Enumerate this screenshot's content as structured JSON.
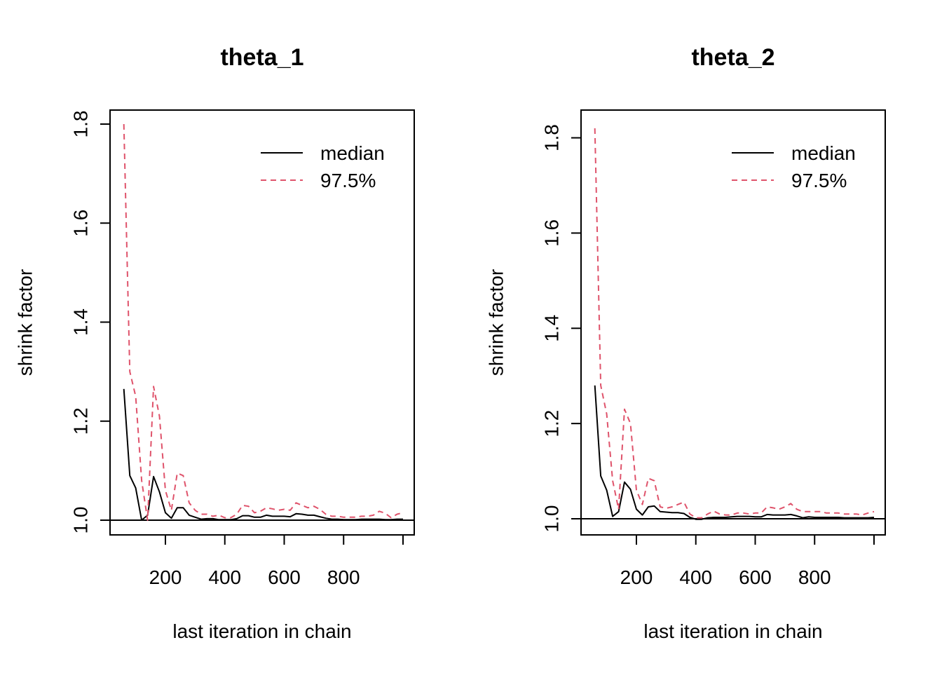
{
  "chart_data": [
    {
      "type": "line",
      "title": "theta_1",
      "xlabel": "last iteration in chain",
      "ylabel": "shrink factor",
      "xlim": [
        50,
        1000
      ],
      "ylim": [
        1.0,
        1.8
      ],
      "xticks": [
        200,
        400,
        600,
        800
      ],
      "xtick_labels": [
        "200",
        "400",
        "600",
        "800"
      ],
      "yticks": [
        1.0,
        1.2,
        1.4,
        1.6,
        1.8
      ],
      "ytick_labels": [
        "1.0",
        "1.2",
        "1.4",
        "1.6",
        "1.8"
      ],
      "reference_line": 1.0,
      "legend": {
        "position": "top-right"
      },
      "x": [
        60,
        80,
        100,
        120,
        140,
        160,
        180,
        200,
        220,
        240,
        260,
        280,
        300,
        320,
        340,
        360,
        380,
        400,
        420,
        440,
        460,
        480,
        500,
        520,
        540,
        560,
        580,
        600,
        620,
        640,
        660,
        680,
        700,
        720,
        740,
        760,
        780,
        800,
        820,
        840,
        860,
        880,
        900,
        920,
        940,
        960,
        980,
        1000
      ],
      "series": [
        {
          "name": "median",
          "color": "#000000",
          "dash": "solid",
          "values": [
            1.265,
            1.09,
            1.065,
            1.0,
            1.01,
            1.088,
            1.057,
            1.015,
            1.004,
            1.025,
            1.025,
            1.01,
            1.006,
            1.002,
            1.003,
            1.003,
            1.001,
            1.001,
            1.001,
            1.003,
            1.009,
            1.009,
            1.006,
            1.006,
            1.01,
            1.008,
            1.008,
            1.008,
            1.007,
            1.013,
            1.012,
            1.01,
            1.01,
            1.007,
            1.004,
            1.002,
            1.002,
            1.001,
            1.001,
            1.001,
            1.002,
            1.002,
            1.002,
            1.002,
            1.001,
            1.001,
            1.002,
            1.002
          ]
        },
        {
          "name": "97.5%",
          "color": "#DF536B",
          "dash": "dashed",
          "values": [
            1.8,
            1.3,
            1.25,
            1.08,
            1.0,
            1.27,
            1.21,
            1.06,
            1.02,
            1.095,
            1.09,
            1.035,
            1.02,
            1.012,
            1.012,
            1.008,
            1.01,
            1.005,
            1.005,
            1.012,
            1.03,
            1.028,
            1.015,
            1.018,
            1.025,
            1.023,
            1.02,
            1.022,
            1.02,
            1.035,
            1.03,
            1.025,
            1.028,
            1.022,
            1.012,
            1.008,
            1.008,
            1.006,
            1.006,
            1.006,
            1.008,
            1.008,
            1.01,
            1.018,
            1.014,
            1.005,
            1.012,
            1.015
          ]
        }
      ]
    },
    {
      "type": "line",
      "title": "theta_2",
      "xlabel": "last iteration in chain",
      "ylabel": "shrink factor",
      "xlim": [
        50,
        1000
      ],
      "ylim": [
        1.0,
        1.82
      ],
      "xticks": [
        200,
        400,
        600,
        800
      ],
      "xtick_labels": [
        "200",
        "400",
        "600",
        "800"
      ],
      "yticks": [
        1.0,
        1.2,
        1.4,
        1.6,
        1.8
      ],
      "ytick_labels": [
        "1.0",
        "1.2",
        "1.4",
        "1.6",
        "1.8"
      ],
      "reference_line": 1.0,
      "legend": {
        "position": "top-right"
      },
      "x": [
        60,
        80,
        100,
        120,
        140,
        160,
        180,
        200,
        220,
        240,
        260,
        280,
        300,
        320,
        340,
        360,
        380,
        400,
        420,
        440,
        460,
        480,
        500,
        520,
        540,
        560,
        580,
        600,
        620,
        640,
        660,
        680,
        700,
        720,
        740,
        760,
        780,
        800,
        820,
        840,
        860,
        880,
        900,
        920,
        940,
        960,
        980,
        1000
      ],
      "series": [
        {
          "name": "median",
          "color": "#000000",
          "dash": "solid",
          "values": [
            1.28,
            1.09,
            1.06,
            1.005,
            1.015,
            1.077,
            1.062,
            1.02,
            1.008,
            1.025,
            1.027,
            1.015,
            1.014,
            1.013,
            1.013,
            1.011,
            1.003,
            0.999,
            0.999,
            1.002,
            1.003,
            1.003,
            1.003,
            1.004,
            1.005,
            1.005,
            1.005,
            1.004,
            1.004,
            1.009,
            1.008,
            1.008,
            1.008,
            1.009,
            1.006,
            1.002,
            1.004,
            1.003,
            1.003,
            1.003,
            1.003,
            1.003,
            1.002,
            1.002,
            1.002,
            1.002,
            1.002,
            1.003
          ]
        },
        {
          "name": "97.5%",
          "color": "#DF536B",
          "dash": "dashed",
          "values": [
            1.82,
            1.28,
            1.22,
            1.08,
            1.02,
            1.23,
            1.2,
            1.06,
            1.03,
            1.085,
            1.08,
            1.025,
            1.022,
            1.025,
            1.03,
            1.035,
            1.01,
            1.002,
            1.002,
            1.01,
            1.016,
            1.01,
            1.008,
            1.008,
            1.012,
            1.012,
            1.01,
            1.012,
            1.012,
            1.025,
            1.023,
            1.02,
            1.025,
            1.032,
            1.02,
            1.015,
            1.015,
            1.015,
            1.015,
            1.012,
            1.012,
            1.012,
            1.01,
            1.01,
            1.01,
            1.008,
            1.012,
            1.015
          ]
        }
      ]
    }
  ]
}
